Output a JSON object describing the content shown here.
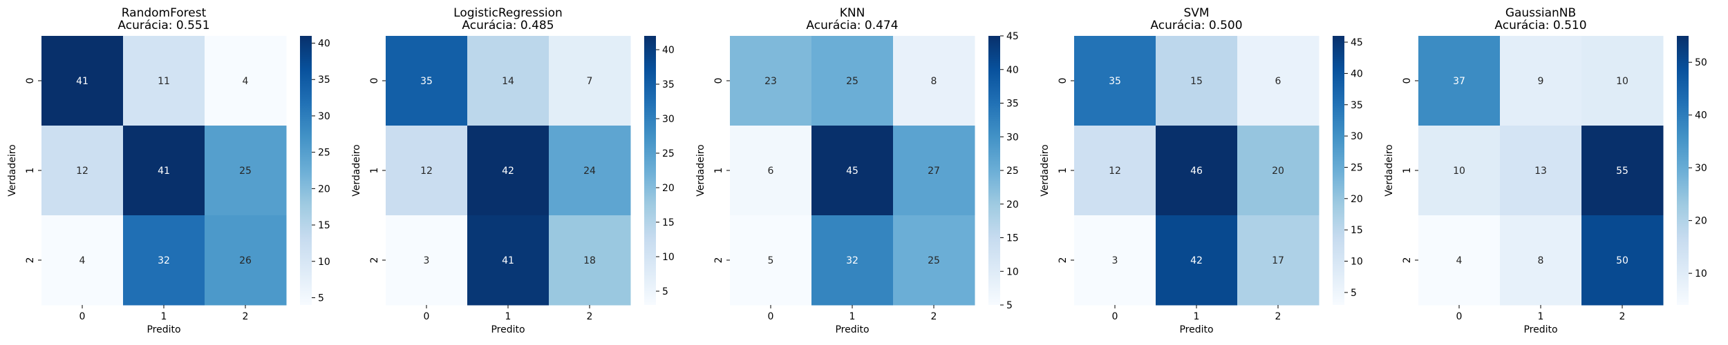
{
  "chart_data": [
    {
      "type": "heatmap",
      "title": "RandomForest",
      "subtitle": "Acurácia: 0.551",
      "xlabel": "Predito",
      "ylabel": "Verdadeiro",
      "x_categories": [
        "0",
        "1",
        "2"
      ],
      "y_categories": [
        "0",
        "1",
        "2"
      ],
      "values": [
        [
          41,
          11,
          4
        ],
        [
          12,
          41,
          25
        ],
        [
          4,
          32,
          26
        ]
      ],
      "colorbar": {
        "min": 4,
        "max": 41,
        "ticks": [
          5,
          10,
          15,
          20,
          25,
          30,
          35,
          40
        ]
      },
      "colormap": "Blues"
    },
    {
      "type": "heatmap",
      "title": "LogisticRegression",
      "subtitle": "Acurácia: 0.485",
      "xlabel": "Predito",
      "ylabel": "Verdadeiro",
      "x_categories": [
        "0",
        "1",
        "2"
      ],
      "y_categories": [
        "0",
        "1",
        "2"
      ],
      "values": [
        [
          35,
          14,
          7
        ],
        [
          12,
          42,
          24
        ],
        [
          3,
          41,
          18
        ]
      ],
      "colorbar": {
        "min": 3,
        "max": 42,
        "ticks": [
          5,
          10,
          15,
          20,
          25,
          30,
          35,
          40
        ]
      },
      "colormap": "Blues"
    },
    {
      "type": "heatmap",
      "title": "KNN",
      "subtitle": "Acurácia: 0.474",
      "xlabel": "Predito",
      "ylabel": "Verdadeiro",
      "x_categories": [
        "0",
        "1",
        "2"
      ],
      "y_categories": [
        "0",
        "1",
        "2"
      ],
      "values": [
        [
          23,
          25,
          8
        ],
        [
          6,
          45,
          27
        ],
        [
          5,
          32,
          25
        ]
      ],
      "colorbar": {
        "min": 5,
        "max": 45,
        "ticks": [
          5,
          10,
          15,
          20,
          25,
          30,
          35,
          40,
          45
        ]
      },
      "colormap": "Blues"
    },
    {
      "type": "heatmap",
      "title": "SVM",
      "subtitle": "Acurácia: 0.500",
      "xlabel": "Predito",
      "ylabel": "Verdadeiro",
      "x_categories": [
        "0",
        "1",
        "2"
      ],
      "y_categories": [
        "0",
        "1",
        "2"
      ],
      "values": [
        [
          35,
          15,
          6
        ],
        [
          12,
          46,
          20
        ],
        [
          3,
          42,
          17
        ]
      ],
      "colorbar": {
        "min": 3,
        "max": 46,
        "ticks": [
          5,
          10,
          15,
          20,
          25,
          30,
          35,
          40,
          45
        ]
      },
      "colormap": "Blues"
    },
    {
      "type": "heatmap",
      "title": "GaussianNB",
      "subtitle": "Acurácia: 0.510",
      "xlabel": "Predito",
      "ylabel": "Verdadeiro",
      "x_categories": [
        "0",
        "1",
        "2"
      ],
      "y_categories": [
        "0",
        "1",
        "2"
      ],
      "values": [
        [
          37,
          9,
          10
        ],
        [
          10,
          13,
          55
        ],
        [
          4,
          8,
          50
        ]
      ],
      "colorbar": {
        "min": 4,
        "max": 55,
        "ticks": [
          10,
          20,
          30,
          40,
          50
        ]
      },
      "colormap": "Blues"
    }
  ]
}
